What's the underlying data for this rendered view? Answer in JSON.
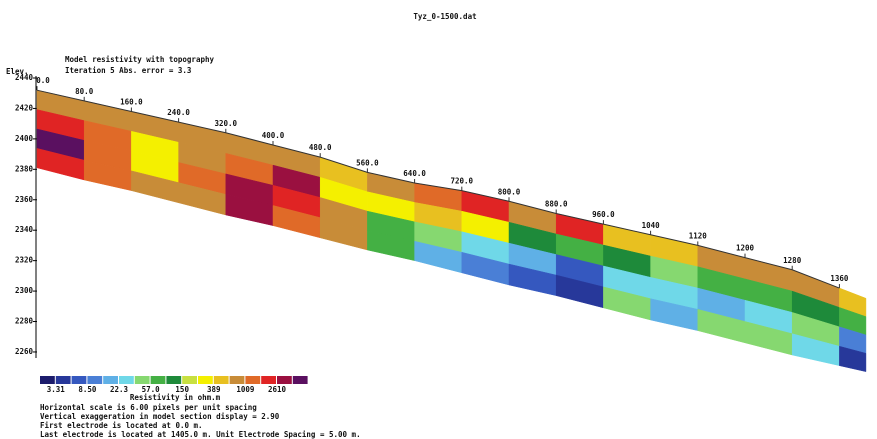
{
  "title": "Tyz_0-1500.dat",
  "chart_data": {
    "type": "resistivity-section",
    "title": "Model resistivity with topography",
    "subtitle": "Iteration 5 Abs. error = 3.3",
    "y_label": "Elev.",
    "xlim": [
      0,
      1405
    ],
    "xticks": [
      {
        "value": 0,
        "label": "0.0"
      },
      {
        "value": 80,
        "label": "80.0"
      },
      {
        "value": 160,
        "label": "160.0"
      },
      {
        "value": 240,
        "label": "240.0"
      },
      {
        "value": 320,
        "label": "320.0"
      },
      {
        "value": 400,
        "label": "400.0"
      },
      {
        "value": 480,
        "label": "480.0"
      },
      {
        "value": 560,
        "label": "560.0"
      },
      {
        "value": 640,
        "label": "640.0"
      },
      {
        "value": 720,
        "label": "720.0"
      },
      {
        "value": 800,
        "label": "800.0"
      },
      {
        "value": 880,
        "label": "880.0"
      },
      {
        "value": 960,
        "label": "960.0"
      },
      1040,
      1120,
      1200,
      1280,
      1360
    ],
    "ylim": [
      2240,
      2445
    ],
    "yticks": [
      2440,
      2420,
      2400,
      2380,
      2360,
      2340,
      2320,
      2300,
      2280,
      2260
    ],
    "surface_elev": [
      2432,
      2425,
      2418,
      2411,
      2404,
      2396,
      2388,
      2378,
      2371,
      2366,
      2359,
      2351,
      2344,
      2337,
      2330,
      2322,
      2314,
      2302
    ],
    "bottom_elev": [
      2381,
      2373,
      2366,
      2358,
      2350,
      2343,
      2335,
      2327,
      2320,
      2312,
      2304,
      2297,
      2289,
      2281,
      2274,
      2266,
      2258,
      2251
    ],
    "layers": [
      [
        700,
        2000,
        4000,
        2000
      ],
      [
        900,
        1200,
        1500,
        1200
      ],
      [
        700,
        300,
        250,
        700
      ],
      [
        800,
        900,
        1200,
        700
      ],
      [
        700,
        1500,
        2500,
        2500
      ],
      [
        600,
        3000,
        2000,
        1500
      ],
      [
        400,
        300,
        600,
        800
      ],
      [
        900,
        300,
        60,
        80
      ],
      [
        1500,
        400,
        40,
        15
      ],
      [
        2000,
        300,
        30,
        10
      ],
      [
        600,
        100,
        20,
        8
      ],
      [
        1800,
        60,
        8,
        5
      ],
      [
        500,
        100,
        25,
        40
      ],
      [
        400,
        50,
        30,
        20
      ],
      [
        800,
        70,
        15,
        40
      ],
      [
        600,
        60,
        30,
        50
      ],
      [
        700,
        100,
        40,
        30
      ],
      [
        500,
        60,
        10,
        5
      ]
    ],
    "colorscale": {
      "label": "Resistivity in ohm.m",
      "colors": [
        "#1c1c6c",
        "#27389a",
        "#3558bf",
        "#4a7fd6",
        "#5fb0e6",
        "#6fd8e8",
        "#86d870",
        "#44b044",
        "#1e8a3a",
        "#c8e040",
        "#f4f000",
        "#e8c020",
        "#c88c38",
        "#e06a28",
        "#e02424",
        "#9a1040",
        "#5a1060"
      ],
      "ticks": [
        3.31,
        {
          "value": 8.5,
          "label": "8.50"
        },
        22.3,
        {
          "value": 57,
          "label": "57.0"
        },
        150,
        389,
        1009,
        2610
      ]
    },
    "notes": [
      "Horizontal scale is 6.00 pixels per unit spacing",
      "Vertical exaggeration in model section display = 2.90",
      "First electrode is located at 0.0 m.",
      "Last electrode is located at 1405.0 m.     Unit Electrode Spacing = 5.00 m."
    ]
  }
}
